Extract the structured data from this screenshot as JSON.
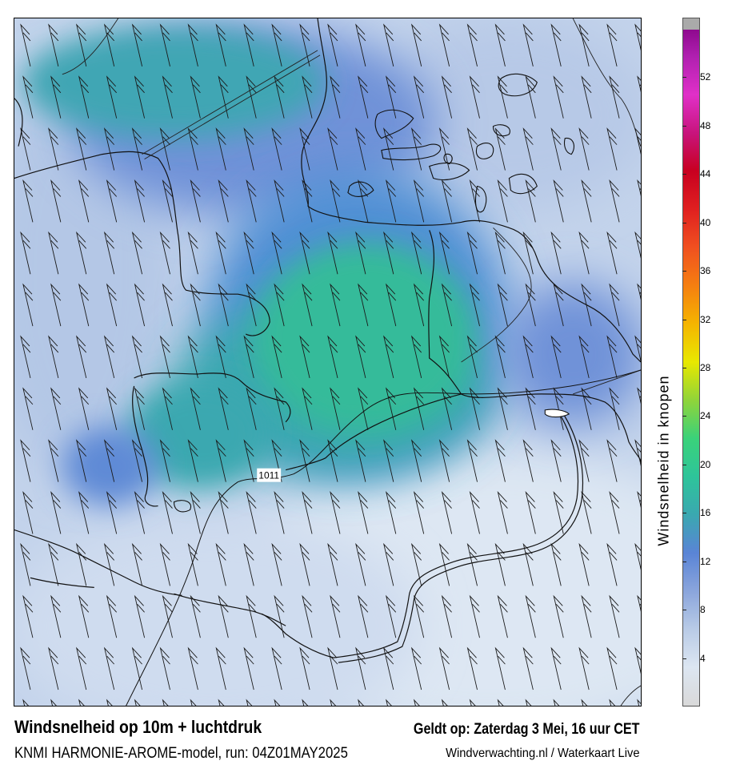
{
  "title": "Windsnelheid op 10m + luchtdruk",
  "subtitle": "KNMI HARMONIE-AROME-model, run: 04Z01MAY2025",
  "valid_time": "Geldt op: Zaterdag 3 Mei, 16 uur CET",
  "credit": "Windverwachting.nl / Waterkaart Live",
  "colorbar": {
    "label": "Windsnelheid in knopen",
    "ticks": [
      "4",
      "8",
      "12",
      "16",
      "20",
      "24",
      "28",
      "32",
      "36",
      "40",
      "44",
      "48",
      "52"
    ],
    "range": [
      0,
      56
    ],
    "colors": [
      "#d9d9d9",
      "#dce6f2",
      "#b9cbe6",
      "#8aa5dc",
      "#5a84d6",
      "#3aa8b0",
      "#2ec49a",
      "#3ad27a",
      "#8fd43a",
      "#e8e800",
      "#f5b400",
      "#f57f10",
      "#f05020",
      "#e02020",
      "#c80020",
      "#c8147c",
      "#e030c8",
      "#b020b0",
      "#800080"
    ]
  },
  "isobar_label": "1011",
  "icons": {
    "wind_barbs": "wind-barb-icon"
  }
}
